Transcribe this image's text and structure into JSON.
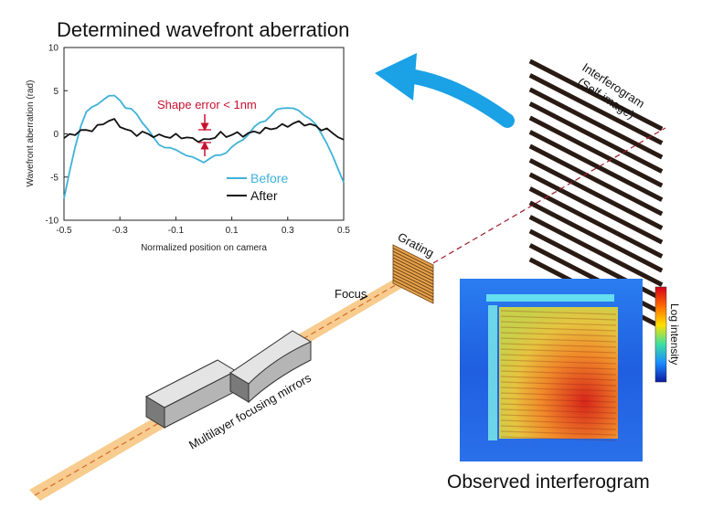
{
  "chart": {
    "title": "Determined wavefront aberration",
    "ylabel": "Wavefront aberration (rad)",
    "xlabel": "Normalized position on camera",
    "annotation": "Shape error < 1nm",
    "legend": [
      {
        "label": "Before",
        "color": "#3fb2d8"
      },
      {
        "label": "After",
        "color": "#111111"
      }
    ]
  },
  "chart_data": {
    "type": "line",
    "title": "Determined wavefront aberration",
    "xlabel": "Normalized position on camera",
    "ylabel": "Wavefront aberration (rad)",
    "xlim": [
      -0.5,
      0.5
    ],
    "ylim": [
      -10,
      10
    ],
    "x_ticks": [
      "-0.5",
      "-0.3",
      "-0.1",
      "0.1",
      "0.3",
      "0.5"
    ],
    "y_ticks": [
      "10",
      "5",
      "0",
      "-5",
      "-10"
    ],
    "legend_position": "bottom-right",
    "grid": false,
    "series": [
      {
        "name": "Before",
        "color": "#3fb2d8",
        "x": [
          -0.5,
          -0.48,
          -0.46,
          -0.44,
          -0.42,
          -0.4,
          -0.38,
          -0.36,
          -0.34,
          -0.32,
          -0.3,
          -0.28,
          -0.26,
          -0.24,
          -0.22,
          -0.2,
          -0.18,
          -0.16,
          -0.14,
          -0.12,
          -0.1,
          -0.08,
          -0.06,
          -0.04,
          -0.02,
          0.0,
          0.02,
          0.04,
          0.06,
          0.08,
          0.1,
          0.12,
          0.14,
          0.16,
          0.18,
          0.2,
          0.22,
          0.24,
          0.26,
          0.28,
          0.3,
          0.32,
          0.34,
          0.36,
          0.38,
          0.4,
          0.42,
          0.44,
          0.46,
          0.48,
          0.5
        ],
        "values": [
          -7.5,
          -4.5,
          -1.5,
          1.0,
          2.5,
          3.0,
          3.5,
          4.0,
          4.3,
          4.4,
          4.0,
          3.0,
          2.8,
          2.3,
          1.4,
          0.5,
          -0.5,
          -1.2,
          -1.5,
          -1.7,
          -1.9,
          -2.1,
          -2.5,
          -2.8,
          -3.0,
          -3.2,
          -2.9,
          -2.6,
          -2.4,
          -2.1,
          -1.6,
          -1.1,
          -0.6,
          0.0,
          0.7,
          1.3,
          1.6,
          2.1,
          2.7,
          3.0,
          3.1,
          2.9,
          2.6,
          2.2,
          1.8,
          1.0,
          0.0,
          -1.0,
          -2.5,
          -4.2,
          -5.6
        ]
      },
      {
        "name": "After",
        "color": "#111111",
        "x": [
          -0.5,
          -0.48,
          -0.46,
          -0.44,
          -0.42,
          -0.4,
          -0.38,
          -0.36,
          -0.34,
          -0.32,
          -0.3,
          -0.28,
          -0.26,
          -0.24,
          -0.22,
          -0.2,
          -0.18,
          -0.16,
          -0.14,
          -0.12,
          -0.1,
          -0.08,
          -0.06,
          -0.04,
          -0.02,
          0.0,
          0.02,
          0.04,
          0.06,
          0.08,
          0.1,
          0.12,
          0.14,
          0.16,
          0.18,
          0.2,
          0.22,
          0.24,
          0.26,
          0.28,
          0.3,
          0.32,
          0.34,
          0.36,
          0.38,
          0.4,
          0.42,
          0.44,
          0.46,
          0.48,
          0.5
        ],
        "values": [
          -0.5,
          -0.2,
          0.1,
          0.3,
          0.4,
          0.5,
          0.8,
          1.2,
          1.6,
          1.5,
          1.0,
          0.5,
          0.2,
          0.0,
          0.1,
          0.0,
          -0.2,
          -0.3,
          -0.2,
          -0.4,
          -0.2,
          -0.3,
          -0.5,
          -0.6,
          -0.7,
          -0.8,
          -0.6,
          -0.3,
          0.0,
          -0.2,
          -0.1,
          0.0,
          -0.1,
          0.0,
          0.2,
          0.3,
          0.5,
          0.6,
          0.8,
          0.9,
          1.0,
          1.2,
          1.3,
          1.2,
          1.0,
          0.9,
          0.6,
          0.4,
          0.2,
          -0.3,
          -0.9
        ]
      }
    ]
  },
  "diagram": {
    "interferogram_label_line1": "Interferogram",
    "interferogram_label_line2": "(Self-image)",
    "grating_label": "Grating",
    "focus_label": "Focus",
    "mirrors_label": "Multilayer focusing mirrors",
    "observed_title": "Observed interferogram",
    "colorbar_label": "Log intensity",
    "arrow_color": "#1aa1e6",
    "beam_color": "#f6c37a"
  }
}
